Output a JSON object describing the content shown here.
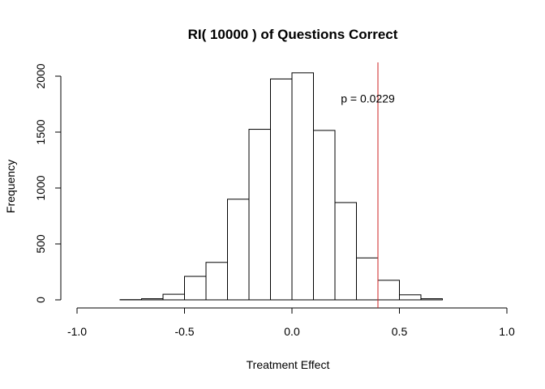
{
  "chart_data": {
    "type": "bar",
    "title": "RI( 10000 ) of Questions Correct",
    "xlabel": "Treatment Effect",
    "ylabel": "Frequency",
    "xlim": [
      -1.0,
      1.0
    ],
    "ylim": [
      0,
      2000
    ],
    "x_ticks": [
      -1.0,
      -0.5,
      0.0,
      0.5,
      1.0
    ],
    "x_tick_labels": [
      "-1.0",
      "-0.5",
      "0.0",
      "0.5",
      "1.0"
    ],
    "y_ticks": [
      0,
      500,
      1000,
      1500,
      2000
    ],
    "y_tick_labels": [
      "0",
      "500",
      "1000",
      "1500",
      "2000"
    ],
    "bin_width": 0.1,
    "bin_edges": [
      -0.8,
      -0.7,
      -0.6,
      -0.5,
      -0.4,
      -0.3,
      -0.2,
      -0.1,
      0.0,
      0.1,
      0.2,
      0.3,
      0.4,
      0.5,
      0.6,
      0.7
    ],
    "values": [
      2,
      10,
      50,
      210,
      335,
      900,
      1525,
      1975,
      2030,
      1515,
      870,
      375,
      175,
      45,
      10
    ],
    "bar_color": "#ffffff",
    "bar_stroke": "#000000",
    "reference_line": {
      "x": 0.4,
      "color": "#cc2222"
    },
    "annotation": {
      "text": "p =  0.0229",
      "x": 0.25,
      "y": 1800
    },
    "grid": false
  }
}
